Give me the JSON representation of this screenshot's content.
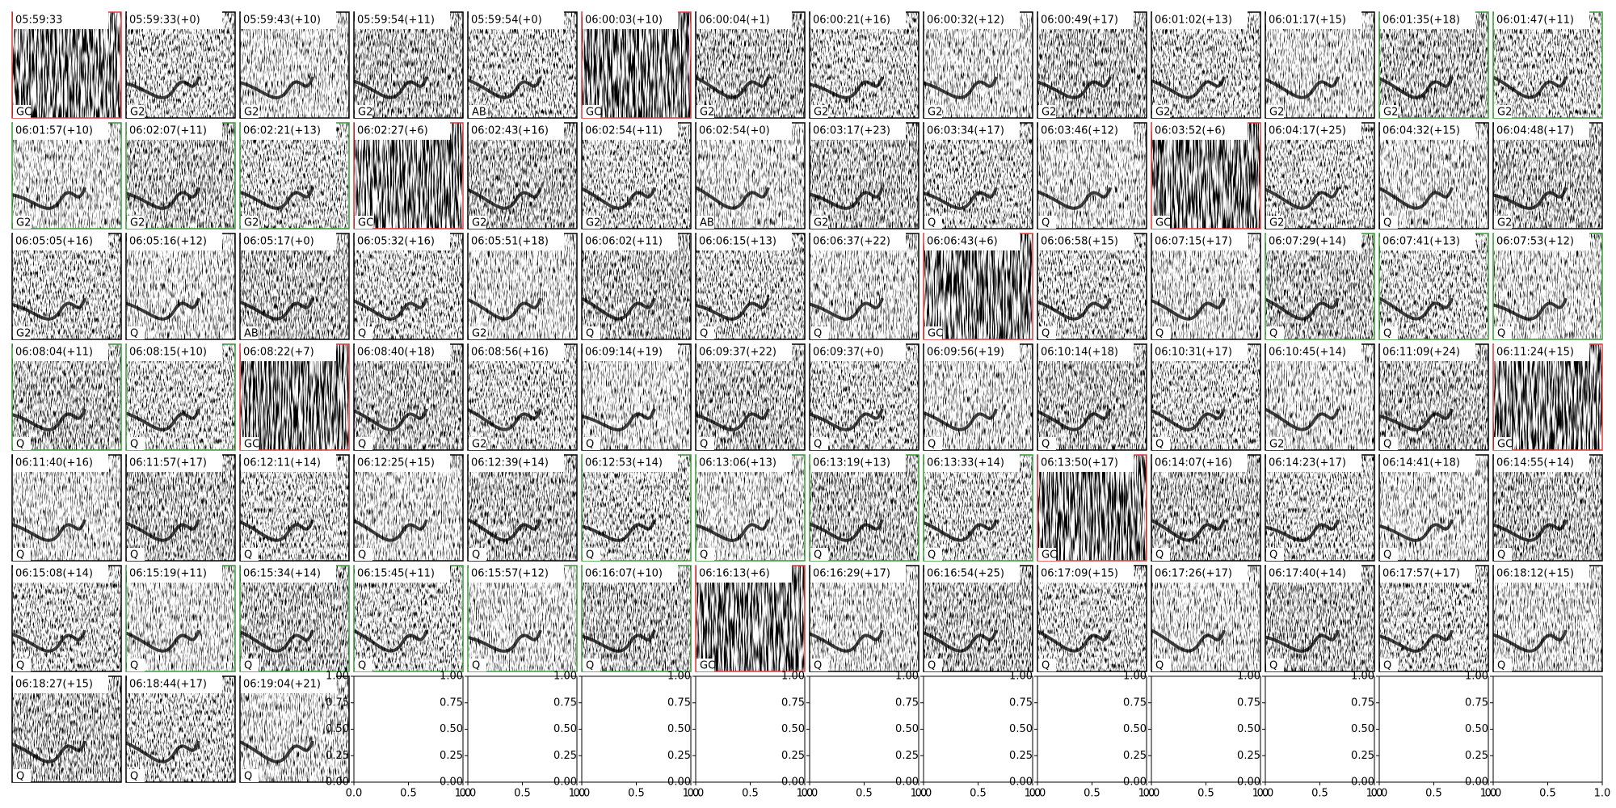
{
  "panels": [
    {
      "title": "05:59:33",
      "label": "GC",
      "frame": "red"
    },
    {
      "title": "05:59:33(+0)",
      "label": "G2",
      "frame": "black"
    },
    {
      "title": "05:59:43(+10)",
      "label": "G2",
      "frame": "black"
    },
    {
      "title": "05:59:54(+11)",
      "label": "G2",
      "frame": "black"
    },
    {
      "title": "05:59:54(+0)",
      "label": "AB",
      "frame": "black"
    },
    {
      "title": "06:00:03(+10)",
      "label": "GC",
      "frame": "red"
    },
    {
      "title": "06:00:04(+1)",
      "label": "G2",
      "frame": "black"
    },
    {
      "title": "06:00:21(+16)",
      "label": "G2",
      "frame": "black"
    },
    {
      "title": "06:00:32(+12)",
      "label": "G2",
      "frame": "black"
    },
    {
      "title": "06:00:49(+17)",
      "label": "G2",
      "frame": "black"
    },
    {
      "title": "06:01:02(+13)",
      "label": "G2",
      "frame": "black"
    },
    {
      "title": "06:01:17(+15)",
      "label": "G2",
      "frame": "black"
    },
    {
      "title": "06:01:35(+18)",
      "label": "G2",
      "frame": "green"
    },
    {
      "title": "06:01:47(+11)",
      "label": "G2",
      "frame": "green"
    },
    {
      "title": "06:01:57(+10)",
      "label": "G2",
      "frame": "green"
    },
    {
      "title": "06:02:07(+11)",
      "label": "G2",
      "frame": "green"
    },
    {
      "title": "06:02:21(+13)",
      "label": "G2",
      "frame": "green"
    },
    {
      "title": "06:02:27(+6)",
      "label": "GC",
      "frame": "red"
    },
    {
      "title": "06:02:43(+16)",
      "label": "G2",
      "frame": "black"
    },
    {
      "title": "06:02:54(+11)",
      "label": "G2",
      "frame": "black"
    },
    {
      "title": "06:02:54(+0)",
      "label": "AB",
      "frame": "black"
    },
    {
      "title": "06:03:17(+23)",
      "label": "G2",
      "frame": "black"
    },
    {
      "title": "06:03:34(+17)",
      "label": "Q",
      "frame": "black"
    },
    {
      "title": "06:03:46(+12)",
      "label": "Q",
      "frame": "black"
    },
    {
      "title": "06:03:52(+6)",
      "label": "GC",
      "frame": "red"
    },
    {
      "title": "06:04:17(+25)",
      "label": "G2",
      "frame": "black"
    },
    {
      "title": "06:04:32(+15)",
      "label": "Q",
      "frame": "black"
    },
    {
      "title": "06:04:48(+17)",
      "label": "G2",
      "frame": "black"
    },
    {
      "title": "06:05:05(+16)",
      "label": "G2",
      "frame": "black"
    },
    {
      "title": "06:05:16(+12)",
      "label": "Q",
      "frame": "black"
    },
    {
      "title": "06:05:17(+0)",
      "label": "AB",
      "frame": "black"
    },
    {
      "title": "06:05:32(+16)",
      "label": "Q",
      "frame": "black"
    },
    {
      "title": "06:05:51(+18)",
      "label": "G2",
      "frame": "black"
    },
    {
      "title": "06:06:02(+11)",
      "label": "Q",
      "frame": "black"
    },
    {
      "title": "06:06:15(+13)",
      "label": "Q",
      "frame": "black"
    },
    {
      "title": "06:06:37(+22)",
      "label": "Q",
      "frame": "black"
    },
    {
      "title": "06:06:43(+6)",
      "label": "GC",
      "frame": "red"
    },
    {
      "title": "06:06:58(+15)",
      "label": "Q",
      "frame": "black"
    },
    {
      "title": "06:07:15(+17)",
      "label": "Q",
      "frame": "black"
    },
    {
      "title": "06:07:29(+14)",
      "label": "Q",
      "frame": "green"
    },
    {
      "title": "06:07:41(+13)",
      "label": "Q",
      "frame": "green"
    },
    {
      "title": "06:07:53(+12)",
      "label": "Q",
      "frame": "green"
    },
    {
      "title": "06:08:04(+11)",
      "label": "Q",
      "frame": "green"
    },
    {
      "title": "06:08:15(+10)",
      "label": "Q",
      "frame": "green"
    },
    {
      "title": "06:08:22(+7)",
      "label": "GC",
      "frame": "red"
    },
    {
      "title": "06:08:40(+18)",
      "label": "Q",
      "frame": "black"
    },
    {
      "title": "06:08:56(+16)",
      "label": "G2",
      "frame": "black"
    },
    {
      "title": "06:09:14(+19)",
      "label": "Q",
      "frame": "black"
    },
    {
      "title": "06:09:37(+22)",
      "label": "Q",
      "frame": "black"
    },
    {
      "title": "06:09:37(+0)",
      "label": "Q",
      "frame": "black"
    },
    {
      "title": "06:09:56(+19)",
      "label": "Q",
      "frame": "black"
    },
    {
      "title": "06:10:14(+18)",
      "label": "Q",
      "frame": "black"
    },
    {
      "title": "06:10:31(+17)",
      "label": "Q",
      "frame": "black"
    },
    {
      "title": "06:10:45(+14)",
      "label": "G2",
      "frame": "black"
    },
    {
      "title": "06:11:09(+24)",
      "label": "Q",
      "frame": "black"
    },
    {
      "title": "06:11:24(+15)",
      "label": "GC",
      "frame": "red"
    },
    {
      "title": "06:11:40(+16)",
      "label": "Q",
      "frame": "black"
    },
    {
      "title": "06:11:57(+17)",
      "label": "Q",
      "frame": "black"
    },
    {
      "title": "06:12:11(+14)",
      "label": "Q",
      "frame": "black"
    },
    {
      "title": "06:12:25(+15)",
      "label": "Q",
      "frame": "black"
    },
    {
      "title": "06:12:39(+14)",
      "label": "Q",
      "frame": "black"
    },
    {
      "title": "06:12:53(+14)",
      "label": "Q",
      "frame": "green"
    },
    {
      "title": "06:13:06(+13)",
      "label": "Q",
      "frame": "green"
    },
    {
      "title": "06:13:19(+13)",
      "label": "Q",
      "frame": "green"
    },
    {
      "title": "06:13:33(+14)",
      "label": "Q",
      "frame": "green"
    },
    {
      "title": "06:13:50(+17)",
      "label": "GC",
      "frame": "red"
    },
    {
      "title": "06:14:07(+16)",
      "label": "Q",
      "frame": "black"
    },
    {
      "title": "06:14:23(+17)",
      "label": "Q",
      "frame": "black"
    },
    {
      "title": "06:14:41(+18)",
      "label": "Q",
      "frame": "black"
    },
    {
      "title": "06:14:55(+14)",
      "label": "Q",
      "frame": "black"
    },
    {
      "title": "06:15:08(+14)",
      "label": "Q",
      "frame": "black"
    },
    {
      "title": "06:15:19(+11)",
      "label": "Q",
      "frame": "green"
    },
    {
      "title": "06:15:34(+14)",
      "label": "Q",
      "frame": "green"
    },
    {
      "title": "06:15:45(+11)",
      "label": "Q",
      "frame": "green"
    },
    {
      "title": "06:15:57(+12)",
      "label": "Q",
      "frame": "green"
    },
    {
      "title": "06:16:07(+10)",
      "label": "Q",
      "frame": "green"
    },
    {
      "title": "06:16:13(+6)",
      "label": "GC",
      "frame": "red"
    },
    {
      "title": "06:16:29(+17)",
      "label": "Q",
      "frame": "black"
    },
    {
      "title": "06:16:54(+25)",
      "label": "Q",
      "frame": "black"
    },
    {
      "title": "06:17:09(+15)",
      "label": "Q",
      "frame": "black"
    },
    {
      "title": "06:17:26(+17)",
      "label": "Q",
      "frame": "black"
    },
    {
      "title": "06:17:40(+14)",
      "label": "Q",
      "frame": "black"
    },
    {
      "title": "06:17:57(+17)",
      "label": "Q",
      "frame": "black"
    },
    {
      "title": "06:18:12(+15)",
      "label": "Q",
      "frame": "black"
    },
    {
      "title": "06:18:27(+15)",
      "label": "Q",
      "frame": "black"
    },
    {
      "title": "06:18:44(+17)",
      "label": "Q",
      "frame": "black"
    },
    {
      "title": "06:19:04(+21)",
      "label": "Q",
      "frame": "black"
    }
  ],
  "empty_axes": {
    "xlim": [
      0,
      1
    ],
    "ylim": [
      0,
      1
    ],
    "xticks": [
      {
        "value": 0,
        "label": "0.0"
      },
      {
        "value": 0.5,
        "label": "0.5"
      },
      {
        "value": 1,
        "label": "1.0"
      }
    ],
    "yticks": [
      {
        "value": 0,
        "label": "0.00"
      },
      {
        "value": 0.25,
        "label": "0.25"
      },
      {
        "value": 0.5,
        "label": "0.50"
      },
      {
        "value": 0.75,
        "label": "0.75"
      },
      {
        "value": 1,
        "label": "1.00"
      }
    ]
  }
}
